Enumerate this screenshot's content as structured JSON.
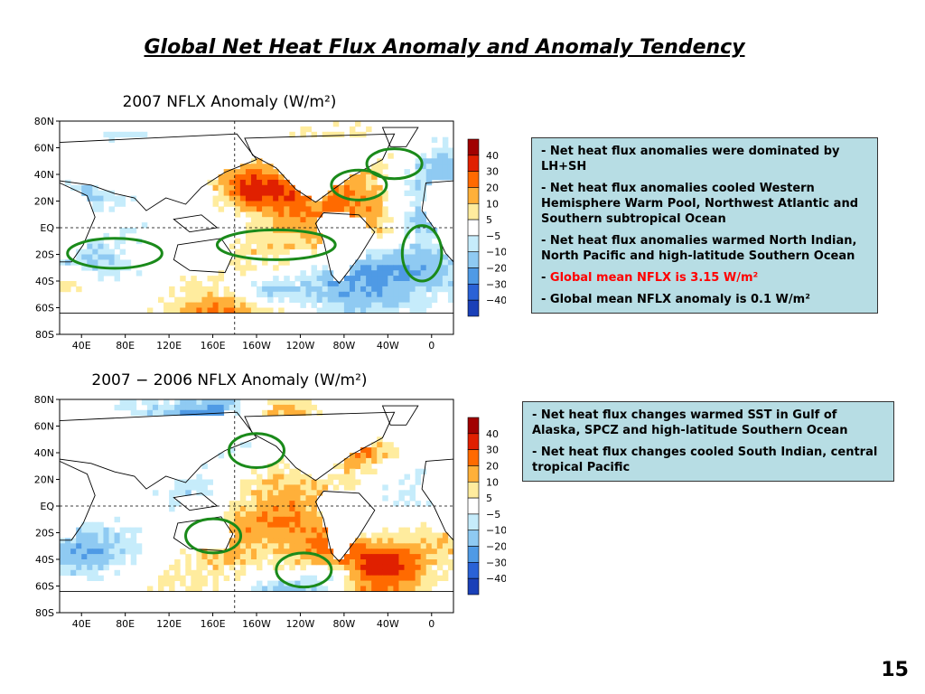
{
  "slide": {
    "title": "Global Net Heat Flux Anomaly and Anomaly Tendency",
    "page_number": "15"
  },
  "maps": [
    {
      "title": "2007 NFLX Anomaly (W/m²)",
      "lat_labels": [
        "80N",
        "60N",
        "40N",
        "20N",
        "EQ",
        "20S",
        "40S",
        "60S",
        "80S"
      ],
      "lon_labels": [
        "40E",
        "80E",
        "120E",
        "160E",
        "160W",
        "120W",
        "80W",
        "40W",
        "0"
      ],
      "colorbar_labels": [
        "40",
        "30",
        "20",
        "10",
        "5",
        "−5",
        "−10",
        "−20",
        "−30",
        "−40"
      ],
      "colorbar_colors": [
        "#a10000",
        "#e02000",
        "#ff6a00",
        "#ffb03a",
        "#ffec9e",
        "#ffffff",
        "#c6ecfb",
        "#8fcaf2",
        "#4f9ae5",
        "#2a62d6",
        "#1a40b8"
      ],
      "ellipses": 5
    },
    {
      "title": "2007 − 2006 NFLX Anomaly (W/m²)",
      "lat_labels": [
        "80N",
        "60N",
        "40N",
        "20N",
        "EQ",
        "20S",
        "40S",
        "60S",
        "80S"
      ],
      "lon_labels": [
        "40E",
        "80E",
        "120E",
        "160E",
        "160W",
        "120W",
        "80W",
        "40W",
        "0"
      ],
      "colorbar_labels": [
        "40",
        "30",
        "20",
        "10",
        "5",
        "−5",
        "−10",
        "−20",
        "−30",
        "−40"
      ],
      "colorbar_colors": [
        "#a10000",
        "#e02000",
        "#ff6a00",
        "#ffb03a",
        "#ffec9e",
        "#ffffff",
        "#c6ecfb",
        "#8fcaf2",
        "#4f9ae5",
        "#2a62d6",
        "#1a40b8"
      ],
      "ellipses": 3
    }
  ],
  "notes_top": [
    {
      "prefix": "- ",
      "text": "Net heat flux anomalies were dominated by LH+SH",
      "red": false
    },
    {
      "prefix": "- ",
      "text": "Net heat flux anomalies cooled Western Hemisphere Warm Pool, Northwest Atlantic and Southern subtropical Ocean",
      "red": false
    },
    {
      "prefix": "- ",
      "text": "Net heat flux anomalies warmed North Indian, North Pacific and high-latitude Southern Ocean",
      "red": false
    },
    {
      "prefix": "- ",
      "text": "Global mean NFLX is 3.15 W/m²",
      "red": true
    },
    {
      "prefix": "- ",
      "text": "Global mean NFLX anomaly is 0.1 W/m²",
      "red": false
    }
  ],
  "notes_bottom": [
    {
      "prefix": "- ",
      "text": "Net heat flux changes warmed SST  in Gulf of Alaska, SPCZ and high-latitude Southern Ocean",
      "red": false
    },
    {
      "prefix": "- ",
      "text": "Net heat flux changes cooled South Indian, central tropical Pacific",
      "red": false
    }
  ],
  "colors": {
    "note_bg": "#b7dde4",
    "ellipse": "#1a8a1a",
    "highlight_text": "#ff0000"
  }
}
